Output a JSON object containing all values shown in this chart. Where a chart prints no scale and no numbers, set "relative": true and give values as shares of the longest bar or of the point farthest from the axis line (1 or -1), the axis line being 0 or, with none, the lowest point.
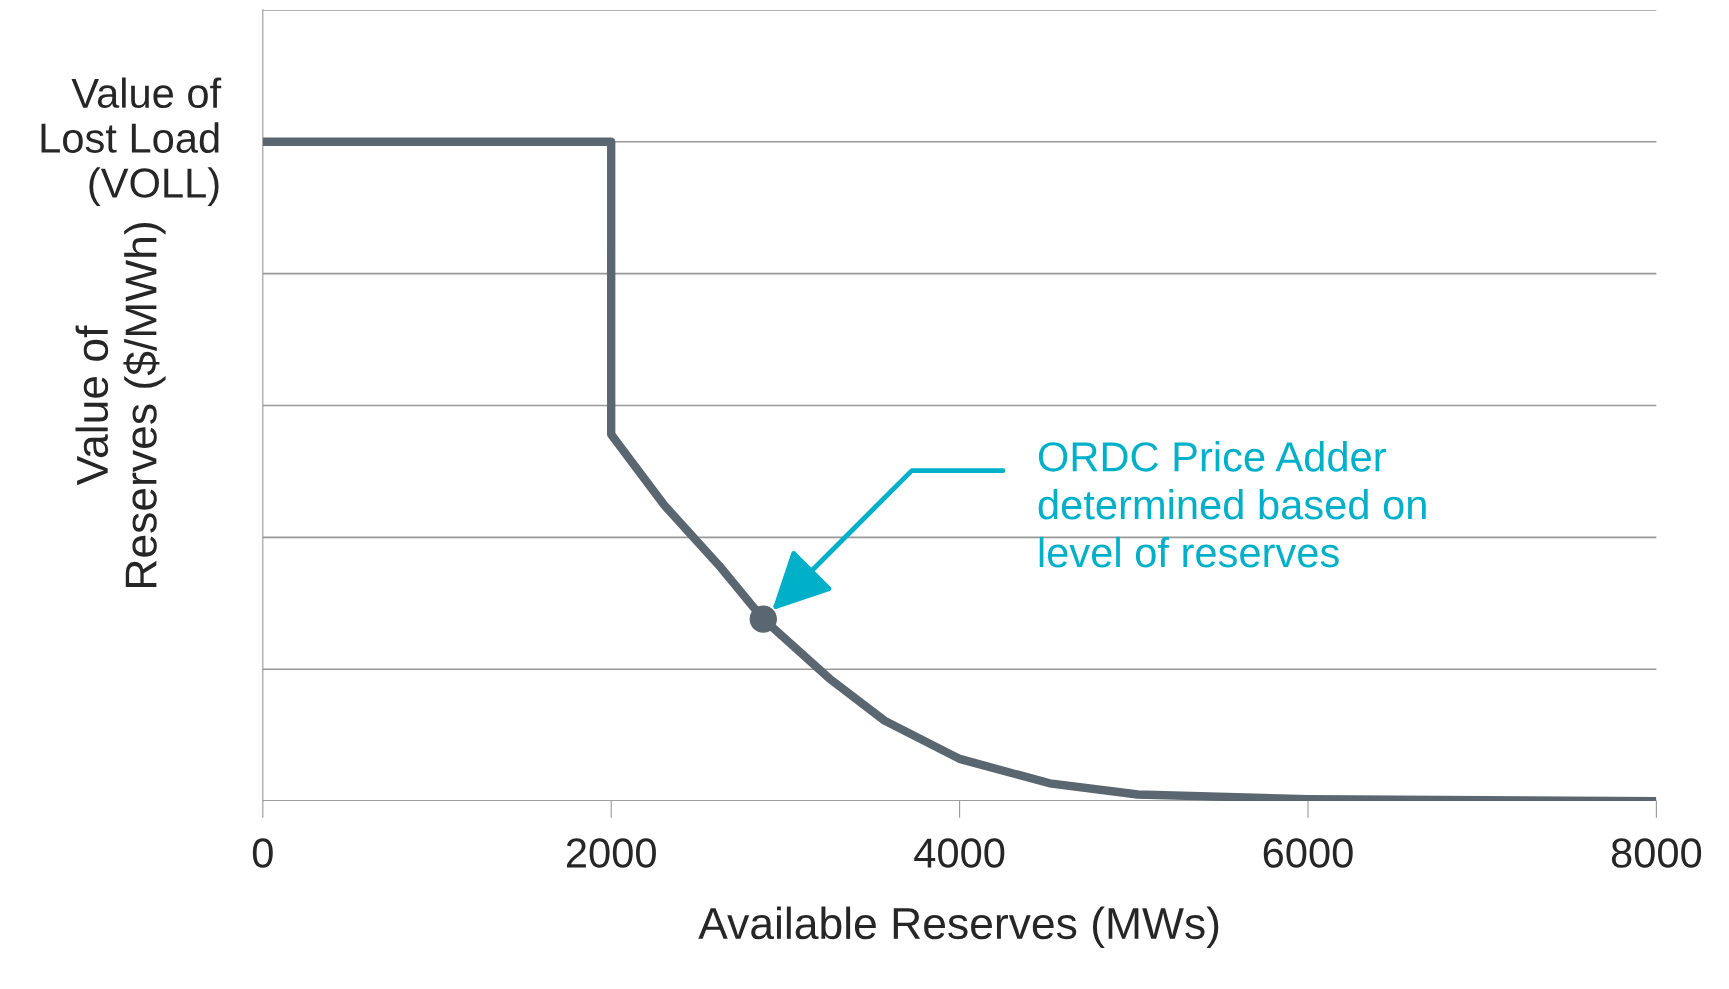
{
  "chart_data": {
    "type": "line",
    "relative": true,
    "xlabel": "Available Reserves (MWs)",
    "ylabel": "Value of\nReserves ($/MWh)",
    "xlim": [
      0,
      8000
    ],
    "xticks": [
      0,
      2000,
      4000,
      6000,
      8000
    ],
    "grid": "y",
    "series": [
      {
        "color": "#5a6670",
        "x": [
          0,
          2000,
          2000,
          2304,
          2620,
          2873,
          3252,
          3569,
          4000,
          4517,
          5023,
          6000,
          8000
        ],
        "values": [
          1,
          1,
          0.556,
          0.449,
          0.357,
          0.276,
          0.186,
          0.122,
          0.064,
          0.027,
          0.01,
          0.003,
          0
        ]
      },
      {
        "type": "scatter",
        "color": "#5a6670",
        "marker": "circle",
        "x": [
          2873
        ],
        "values": [
          0.276
        ]
      }
    ],
    "annotations": [
      {
        "text": "Value of\nLost Load\n(VOLL)",
        "x": 0,
        "y": 1
      },
      "ORDC Price Adder\ndetermined based on\nlevel of reserves"
    ]
  }
}
